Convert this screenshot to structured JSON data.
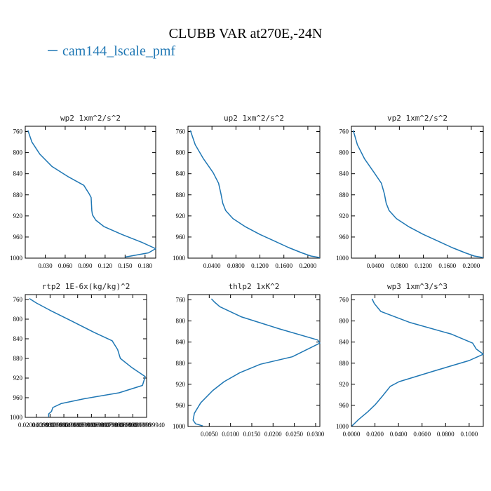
{
  "figure": {
    "title": "CLUBB VAR at270E,-24N",
    "legend": {
      "label": "cam144_lscale_pmf",
      "color": "#1f77b4"
    }
  },
  "chart_data": [
    {
      "type": "line",
      "title": "wp2  1xm^2/s^2",
      "xlim": [
        0.0,
        0.196
      ],
      "ylim": [
        750,
        1000
      ],
      "y_inverted": true,
      "xticks": [
        "0.030",
        "0.060",
        "0.090",
        "0.120",
        "0.150",
        "0.180"
      ],
      "xtick_values": [
        0.03,
        0.06,
        0.09,
        0.12,
        0.15,
        0.18
      ],
      "yticks": [
        760,
        800,
        840,
        880,
        920,
        960,
        1000
      ],
      "series": [
        {
          "x": [
            0.004,
            0.01,
            0.022,
            0.04,
            0.065,
            0.088,
            0.096,
            0.099,
            0.1,
            0.101,
            0.106,
            0.118,
            0.145,
            0.175,
            0.196,
            0.185,
            0.15
          ],
          "y": [
            758,
            780,
            803,
            826,
            846,
            862,
            878,
            885,
            910,
            918,
            928,
            940,
            955,
            970,
            982,
            990,
            998
          ]
        }
      ]
    },
    {
      "type": "line",
      "title": "up2  1xm^2/s^2",
      "xlim": [
        0.0,
        0.22
      ],
      "ylim": [
        750,
        1000
      ],
      "y_inverted": true,
      "xticks": [
        "0.0400",
        "0.0800",
        "0.1200",
        "0.1600",
        "0.2000"
      ],
      "xtick_values": [
        0.04,
        0.08,
        0.12,
        0.16,
        0.2
      ],
      "yticks": [
        760,
        800,
        840,
        880,
        920,
        960,
        1000
      ],
      "series": [
        {
          "x": [
            0.004,
            0.012,
            0.026,
            0.042,
            0.051,
            0.055,
            0.058,
            0.063,
            0.075,
            0.095,
            0.12,
            0.145,
            0.168,
            0.19,
            0.205,
            0.22
          ],
          "y": [
            758,
            785,
            812,
            838,
            858,
            878,
            896,
            910,
            925,
            940,
            955,
            968,
            980,
            990,
            996,
            999
          ]
        }
      ]
    },
    {
      "type": "line",
      "title": "vp2  1xm^2/s^2",
      "xlim": [
        0.0,
        0.22
      ],
      "ylim": [
        750,
        1000
      ],
      "y_inverted": true,
      "xticks": [
        "0.0400",
        "0.0800",
        "0.1200",
        "0.1600",
        "0.2000"
      ],
      "xtick_values": [
        0.04,
        0.08,
        0.12,
        0.16,
        0.2
      ],
      "yticks": [
        760,
        800,
        840,
        880,
        920,
        960,
        1000
      ],
      "series": [
        {
          "x": [
            0.003,
            0.01,
            0.022,
            0.038,
            0.05,
            0.055,
            0.058,
            0.063,
            0.075,
            0.095,
            0.12,
            0.145,
            0.168,
            0.19,
            0.205,
            0.22
          ],
          "y": [
            758,
            785,
            812,
            838,
            858,
            878,
            896,
            910,
            925,
            940,
            955,
            968,
            980,
            990,
            996,
            999
          ]
        }
      ]
    },
    {
      "type": "line",
      "title": "rtp2  1E-6x(kg/kg)^2",
      "xlim": [
        0.012,
        0.1
      ],
      "ylim": [
        750,
        1000
      ],
      "y_inverted": true,
      "xticks": [
        "0.0200000000",
        "0.0299999990",
        "0.0399999990",
        "0.0499999990",
        "0.0599999990",
        "0.0699999990",
        "0.0799999990",
        "0.0899999990",
        "0.0999999940"
      ],
      "xtick_values": [
        0.02,
        0.03,
        0.04,
        0.05,
        0.06,
        0.07,
        0.08,
        0.09,
        0.1
      ],
      "yticks": [
        760,
        800,
        840,
        880,
        920,
        960,
        1000
      ],
      "series": [
        {
          "x": [
            0.015,
            0.02,
            0.03,
            0.045,
            0.062,
            0.075,
            0.079,
            0.081,
            0.089,
            0.099,
            0.097,
            0.08,
            0.055,
            0.038,
            0.032,
            0.031,
            0.029,
            0.029
          ],
          "y": [
            758,
            767,
            782,
            803,
            827,
            844,
            862,
            880,
            898,
            917,
            935,
            950,
            962,
            972,
            980,
            988,
            993,
            999
          ]
        }
      ]
    },
    {
      "type": "line",
      "title": "thlp2  1xK^2",
      "xlim": [
        0.0,
        0.031
      ],
      "ylim": [
        750,
        1000
      ],
      "y_inverted": true,
      "xticks": [
        "0.0050",
        "0.0100",
        "0.0150",
        "0.0200",
        "0.0250",
        "0.0300"
      ],
      "xtick_values": [
        0.005,
        0.01,
        0.015,
        0.02,
        0.025,
        0.03
      ],
      "yticks": [
        760,
        800,
        840,
        880,
        920,
        960,
        1000
      ],
      "series": [
        {
          "x": [
            0.0055,
            0.0062,
            0.0075,
            0.0125,
            0.0215,
            0.0305,
            0.031,
            0.0245,
            0.017,
            0.0122,
            0.0085,
            0.0058,
            0.003,
            0.0015,
            0.0012,
            0.0018,
            0.0035
          ],
          "y": [
            758,
            764,
            773,
            792,
            815,
            836,
            842,
            868,
            882,
            898,
            915,
            932,
            955,
            975,
            988,
            995,
            999
          ]
        }
      ]
    },
    {
      "type": "line",
      "title": "wp3  1xm^3/s^3",
      "xlim": [
        0.0,
        0.112
      ],
      "ylim": [
        750,
        1000
      ],
      "y_inverted": true,
      "xticks": [
        "0.0000",
        "0.0200",
        "0.0400",
        "0.0600",
        "0.0800",
        "0.1000"
      ],
      "xtick_values": [
        0.0,
        0.02,
        0.04,
        0.06,
        0.08,
        0.1
      ],
      "yticks": [
        760,
        800,
        840,
        880,
        920,
        960,
        1000
      ],
      "series": [
        {
          "x": [
            0.0175,
            0.0195,
            0.025,
            0.05,
            0.085,
            0.103,
            0.106,
            0.112,
            0.1,
            0.07,
            0.0405,
            0.033,
            0.0265,
            0.0205,
            0.014,
            0.006,
            0.0005
          ],
          "y": [
            758,
            767,
            782,
            803,
            825,
            842,
            853,
            863,
            875,
            895,
            915,
            924,
            942,
            958,
            972,
            987,
            999
          ]
        }
      ]
    }
  ]
}
